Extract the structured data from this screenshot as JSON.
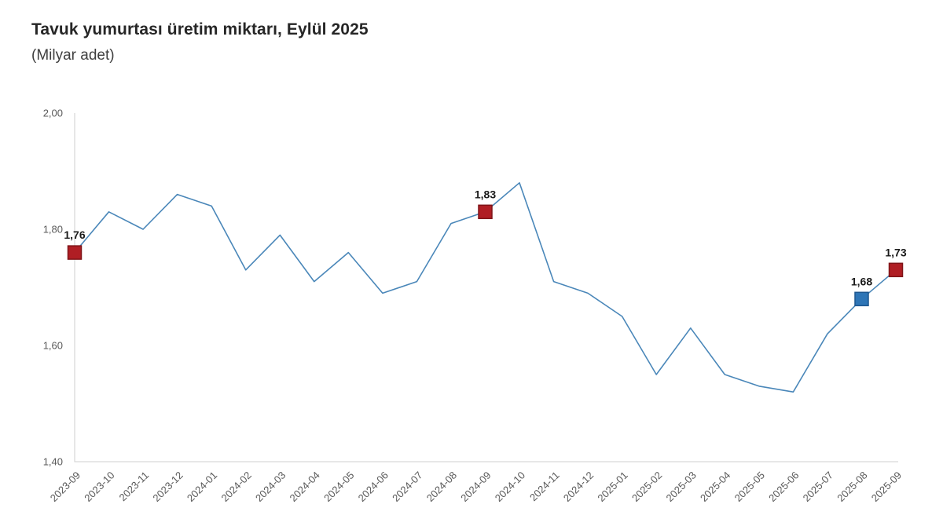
{
  "header": {
    "title": "Tavuk yumurtası üretim miktarı, Eylül 2025",
    "subtitle": "(Milyar adet)"
  },
  "chart_data": {
    "type": "line",
    "title": "Tavuk yumurtası üretim miktarı, Eylül 2025",
    "subtitle": "(Milyar adet)",
    "categories": [
      "2023-09",
      "2023-10",
      "2023-11",
      "2023-12",
      "2024-01",
      "2024-02",
      "2024-03",
      "2024-04",
      "2024-05",
      "2024-06",
      "2024-07",
      "2024-08",
      "2024-09",
      "2024-10",
      "2024-11",
      "2024-12",
      "2025-01",
      "2025-02",
      "2025-03",
      "2025-04",
      "2025-05",
      "2025-06",
      "2025-07",
      "2025-08",
      "2025-09"
    ],
    "values": [
      1.76,
      1.83,
      1.8,
      1.86,
      1.84,
      1.73,
      1.79,
      1.71,
      1.76,
      1.69,
      1.71,
      1.81,
      1.83,
      1.88,
      1.71,
      1.69,
      1.65,
      1.55,
      1.63,
      1.55,
      1.53,
      1.52,
      1.62,
      1.68,
      1.73
    ],
    "xlabel": "",
    "ylabel": "",
    "ylim": [
      1.4,
      2.0
    ],
    "yticks": [
      1.4,
      1.6,
      1.8,
      2.0
    ],
    "ytick_labels": [
      "1,40",
      "1,60",
      "1,80",
      "2,00"
    ],
    "grid": false,
    "legend": "none",
    "colors": {
      "line": "#4a87b9",
      "axis": "#cfcfcf",
      "tick_text": "#595959",
      "highlight_red": "#b01e24",
      "highlight_red_border": "#7f1418",
      "highlight_blue": "#2e75b6",
      "highlight_blue_border": "#1d578f"
    },
    "highlights": [
      {
        "index": 0,
        "label": "1,76",
        "fill": "#b01e24",
        "border": "#7f1418"
      },
      {
        "index": 12,
        "label": "1,83",
        "fill": "#b01e24",
        "border": "#7f1418"
      },
      {
        "index": 23,
        "label": "1,68",
        "fill": "#2e75b6",
        "border": "#1d578f"
      },
      {
        "index": 24,
        "label": "1,73",
        "fill": "#b01e24",
        "border": "#7f1418"
      }
    ]
  }
}
